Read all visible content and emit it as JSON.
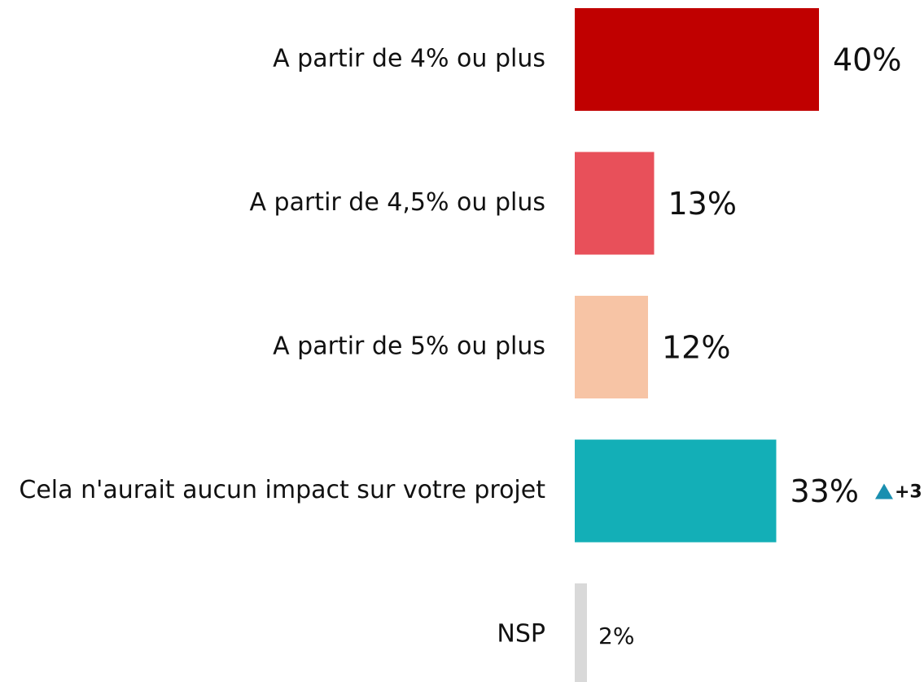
{
  "chart_data": {
    "type": "bar",
    "orientation": "horizontal",
    "categories": [
      "A partir de 4% ou plus",
      "A partir de 4,5% ou plus",
      "A partir de 5% ou plus",
      "Cela n'aurait aucun impact sur votre projet",
      "NSP"
    ],
    "values": [
      40,
      13,
      12,
      33,
      2
    ],
    "value_labels": [
      "40%",
      "13%",
      "12%",
      "33%",
      "2%"
    ],
    "colors": [
      "#c00000",
      "#e8505a",
      "#f7c4a5",
      "#13afb7",
      "#d9d9d9"
    ],
    "annotations": [
      {
        "category": "Cela n'aurait aucun impact sur votre projet",
        "text": "+3",
        "color": "#1a8fb0"
      }
    ]
  }
}
